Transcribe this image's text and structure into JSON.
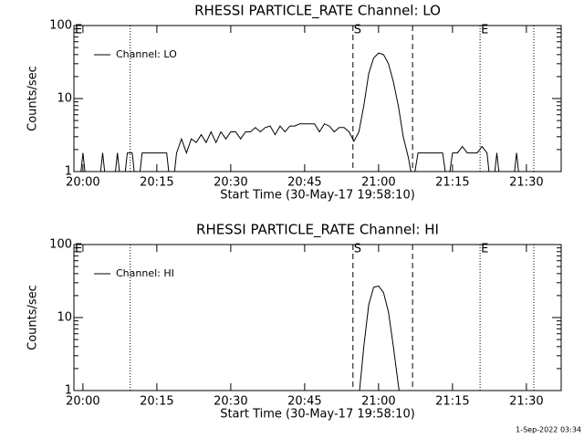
{
  "chart_data": [
    {
      "type": "line",
      "title": "RHESSI PARTICLE_RATE Channel: LO",
      "xlabel": "Start Time (30-May-17 19:58:10)",
      "ylabel": "Counts/sec",
      "log_scale": true,
      "ylim": [
        1,
        100
      ],
      "yticks": [
        1,
        10,
        100
      ],
      "xlim": [
        -1.83,
        97.06
      ],
      "xticks": [
        {
          "value": 0,
          "label": "20:00"
        },
        {
          "value": 15,
          "label": "20:15"
        },
        {
          "value": 30,
          "label": "20:30"
        },
        {
          "value": 45,
          "label": "20:45"
        },
        {
          "value": 60,
          "label": "21:00"
        },
        {
          "value": 75,
          "label": "21:15"
        },
        {
          "value": 90,
          "label": "21:30"
        }
      ],
      "legend": "upper left",
      "markers": [
        {
          "x": -1.83,
          "style": "none",
          "label": "E"
        },
        {
          "x": 9.6
        },
        {
          "x": 54.8,
          "style": "dashed",
          "label": "S"
        },
        {
          "x": 66.9,
          "style": "dashed"
        },
        {
          "x": 80.6,
          "style": "dotted",
          "label": "E"
        },
        {
          "x": 91.5,
          "style": "dotted"
        }
      ],
      "x": [
        -1,
        0,
        1,
        2,
        3,
        4,
        5,
        6,
        7,
        8,
        9,
        10,
        11,
        12,
        13,
        14,
        15,
        16,
        17,
        18,
        19,
        20,
        21,
        22,
        23,
        24,
        25,
        26,
        27,
        28,
        29,
        30,
        31,
        32,
        33,
        34,
        35,
        36,
        37,
        38,
        39,
        40,
        41,
        42,
        43,
        44,
        45,
        46,
        47,
        48,
        49,
        50,
        51,
        52,
        53,
        54,
        55,
        56,
        57,
        58,
        59,
        60,
        61,
        62,
        63,
        64,
        65,
        66,
        67,
        68,
        69,
        70,
        71,
        72,
        73,
        74,
        75,
        76,
        77,
        78,
        79,
        80,
        81,
        82,
        83,
        84,
        85,
        86,
        87,
        88,
        89,
        90,
        91,
        92,
        93,
        94,
        95,
        96
      ],
      "series": [
        {
          "name": "Channel: LO",
          "color": "#000000",
          "values": [
            0,
            1.8,
            0,
            0,
            0,
            1.8,
            0,
            0,
            1.8,
            0,
            1.8,
            1.8,
            0,
            1.8,
            1.8,
            1.8,
            1.8,
            1.8,
            1.8,
            0,
            1.8,
            2.8,
            1.8,
            2.8,
            2.5,
            3.2,
            2.5,
            3.5,
            2.5,
            3.5,
            2.8,
            3.5,
            3.5,
            2.8,
            3.5,
            3.5,
            4,
            3.5,
            4,
            4.2,
            3.2,
            4.2,
            3.5,
            4.2,
            4.2,
            4.5,
            4.5,
            4.5,
            4.5,
            3.5,
            4.5,
            4.2,
            3.5,
            4,
            4,
            3.5,
            2.6,
            3.5,
            8,
            22,
            36,
            42,
            40,
            30,
            17,
            8,
            3,
            1.6,
            0.7,
            1.8,
            1.8,
            1.8,
            1.8,
            1.8,
            1.8,
            0.6,
            1.8,
            1.8,
            2.2,
            1.8,
            1.8,
            1.8,
            2.2,
            1.8,
            0,
            1.8,
            0,
            0,
            0,
            1.8,
            0,
            0,
            0,
            0,
            0,
            0,
            0,
            0
          ]
        }
      ]
    },
    {
      "type": "line",
      "title": "RHESSI PARTICLE_RATE Channel: HI",
      "xlabel": "Start Time (30-May-17 19:58:10)",
      "ylabel": "Counts/sec",
      "log_scale": true,
      "ylim": [
        1,
        100
      ],
      "yticks": [
        1,
        10,
        100
      ],
      "xlim": [
        -1.83,
        97.06
      ],
      "xticks": [
        {
          "value": 0,
          "label": "20:00"
        },
        {
          "value": 15,
          "label": "20:15"
        },
        {
          "value": 30,
          "label": "20:30"
        },
        {
          "value": 45,
          "label": "20:45"
        },
        {
          "value": 60,
          "label": "21:00"
        },
        {
          "value": 75,
          "label": "21:15"
        },
        {
          "value": 90,
          "label": "21:30"
        }
      ],
      "legend": "upper left",
      "markers": [
        {
          "x": -1.83,
          "style": "none",
          "label": "E"
        },
        {
          "x": 9.6
        },
        {
          "x": 54.8,
          "style": "dashed",
          "label": "S"
        },
        {
          "x": 66.9,
          "style": "dashed"
        },
        {
          "x": 80.6,
          "style": "dotted",
          "label": "E"
        },
        {
          "x": 91.5,
          "style": "dotted"
        }
      ],
      "x": [
        -1,
        0,
        1,
        2,
        3,
        4,
        5,
        6,
        7,
        8,
        9,
        10,
        11,
        12,
        13,
        14,
        15,
        16,
        17,
        18,
        19,
        20,
        21,
        22,
        23,
        24,
        25,
        26,
        27,
        28,
        29,
        30,
        31,
        32,
        33,
        34,
        35,
        36,
        37,
        38,
        39,
        40,
        41,
        42,
        43,
        44,
        45,
        46,
        47,
        48,
        49,
        50,
        51,
        52,
        53,
        54,
        55,
        56,
        57,
        58,
        59,
        60,
        61,
        62,
        63,
        64,
        65,
        66,
        67,
        68,
        69,
        70,
        71,
        72,
        73,
        74,
        75,
        76,
        77,
        78,
        79,
        80,
        81,
        82,
        83,
        84,
        85,
        86,
        87,
        88,
        89,
        90,
        91,
        92,
        93,
        94,
        95,
        96
      ],
      "series": [
        {
          "name": "Channel: HI",
          "color": "#000000",
          "values": [
            0,
            0,
            0,
            0,
            0,
            0,
            0,
            0,
            0,
            0,
            0,
            0,
            0,
            0,
            0,
            0,
            0,
            0,
            0,
            0,
            0,
            0,
            0,
            0,
            0,
            0,
            0,
            0,
            0,
            0,
            0,
            0,
            0,
            0,
            0,
            0,
            0,
            0,
            0,
            0,
            0,
            0,
            0,
            0,
            0,
            0,
            0,
            0,
            0,
            0,
            0,
            0,
            0,
            0,
            0,
            0,
            0,
            0.8,
            4,
            15,
            26,
            27,
            22,
            12,
            4,
            1.2,
            0,
            0,
            0,
            0,
            0,
            0,
            0,
            0,
            0,
            0,
            0,
            0,
            0,
            0,
            0,
            0,
            0,
            0,
            0,
            0,
            0,
            0,
            0,
            0,
            0,
            0,
            0,
            0,
            0,
            0,
            0,
            0
          ]
        }
      ]
    }
  ],
  "timestamp": "1-Sep-2022 03:34"
}
